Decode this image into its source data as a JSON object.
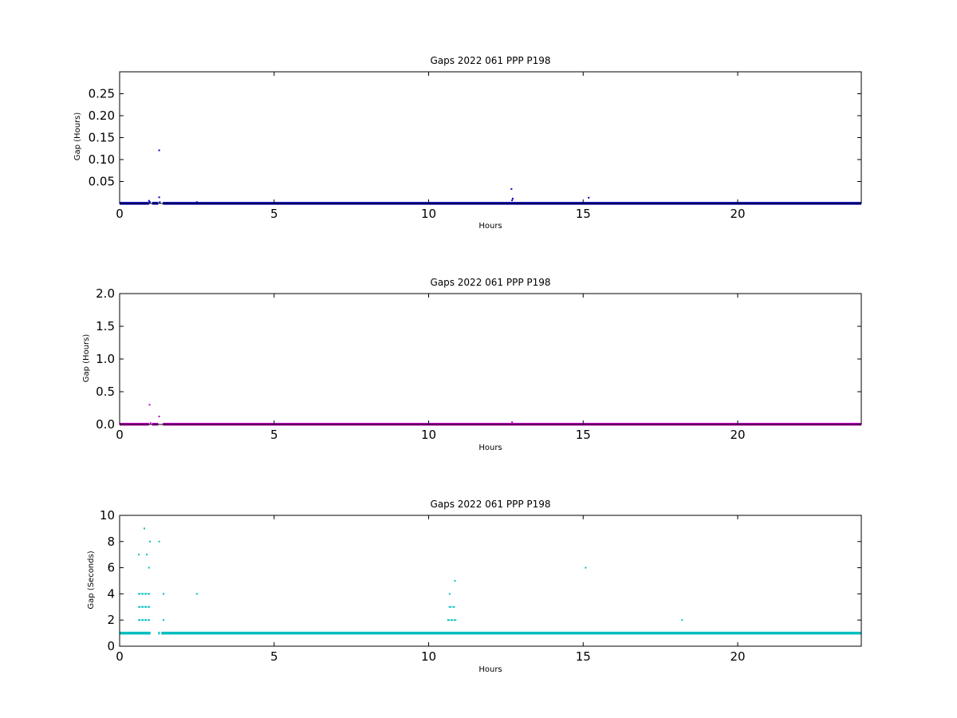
{
  "chart_data": [
    {
      "type": "scatter",
      "title": "Gaps 2022 061 PPP  P198",
      "xlabel": "Hours",
      "ylabel": "Gap (Hours)",
      "xlim": [
        0,
        24
      ],
      "ylim": [
        0,
        0.3
      ],
      "xticks": [
        0,
        5,
        10,
        15,
        20
      ],
      "xtick_labels": [
        "0",
        "5",
        "10",
        "15",
        "20"
      ],
      "yticks": [
        0.05,
        0.1,
        0.15,
        0.2,
        0.25
      ],
      "ytick_labels": [
        "0.05",
        "0.10",
        "0.15",
        "0.20",
        "0.25"
      ],
      "grid": false,
      "color": "#0000c0",
      "baseline": {
        "y": 0.0003,
        "x_ranges": [
          [
            0,
            0.95
          ],
          [
            1.05,
            1.25
          ],
          [
            1.4,
            24
          ]
        ]
      },
      "points": [
        {
          "x": 0.95,
          "y": 0.006
        },
        {
          "x": 0.98,
          "y": 0.003
        },
        {
          "x": 1.28,
          "y": 0.121
        },
        {
          "x": 1.28,
          "y": 0.014
        },
        {
          "x": 1.3,
          "y": 0.003
        },
        {
          "x": 2.5,
          "y": 0.003
        },
        {
          "x": 12.68,
          "y": 0.033
        },
        {
          "x": 12.72,
          "y": 0.011
        },
        {
          "x": 12.7,
          "y": 0.007
        },
        {
          "x": 15.18,
          "y": 0.013
        }
      ]
    },
    {
      "type": "scatter",
      "title": "Gaps 2022 061 PPP  P198",
      "xlabel": "Hours",
      "ylabel": "Gap (Hours)",
      "xlim": [
        0,
        24
      ],
      "ylim": [
        0,
        2.0
      ],
      "xticks": [
        0,
        5,
        10,
        15,
        20
      ],
      "xtick_labels": [
        "0",
        "5",
        "10",
        "15",
        "20"
      ],
      "yticks": [
        0,
        0.5,
        1.0,
        1.5,
        2.0
      ],
      "ytick_labels": [
        "0.0",
        "0.5",
        "1.0",
        "1.5",
        "2.0"
      ],
      "grid": false,
      "color": "#c000c0",
      "baseline": {
        "y": 0.003,
        "x_ranges": [
          [
            0,
            0.95
          ],
          [
            1.05,
            1.25
          ],
          [
            1.4,
            24
          ]
        ]
      },
      "points": [
        {
          "x": 0.97,
          "y": 0.3
        },
        {
          "x": 1.28,
          "y": 0.121
        },
        {
          "x": 1.0,
          "y": 0.02
        },
        {
          "x": 12.7,
          "y": 0.033
        }
      ]
    },
    {
      "type": "scatter",
      "title": "Gaps 2022 061 PPP  P198",
      "xlabel": "Hours",
      "ylabel": "Gap (Seconds)",
      "xlim": [
        0,
        24
      ],
      "ylim": [
        0,
        10
      ],
      "xticks": [
        0,
        5,
        10,
        15,
        20
      ],
      "xtick_labels": [
        "0",
        "5",
        "10",
        "15",
        "20"
      ],
      "yticks": [
        0,
        2,
        4,
        6,
        8,
        10
      ],
      "ytick_labels": [
        "0",
        "2",
        "4",
        "6",
        "8",
        "10"
      ],
      "grid": false,
      "color": "#00bfbf",
      "baseline": {
        "y": 1,
        "x_ranges": [
          [
            0,
            1.0
          ],
          [
            1.25,
            1.3
          ],
          [
            1.35,
            24
          ]
        ]
      },
      "segments": [
        {
          "y": 4,
          "x0": 0.6,
          "x1": 0.98
        },
        {
          "y": 3,
          "x0": 0.6,
          "x1": 0.98
        },
        {
          "y": 2,
          "x0": 0.6,
          "x1": 0.98
        },
        {
          "y": 2,
          "x0": 10.6,
          "x1": 10.92
        },
        {
          "y": 3,
          "x0": 10.65,
          "x1": 10.78
        }
      ],
      "points": [
        {
          "x": 0.8,
          "y": 9
        },
        {
          "x": 0.62,
          "y": 7
        },
        {
          "x": 0.88,
          "y": 7
        },
        {
          "x": 0.98,
          "y": 8
        },
        {
          "x": 0.95,
          "y": 6
        },
        {
          "x": 1.28,
          "y": 8
        },
        {
          "x": 1.42,
          "y": 4
        },
        {
          "x": 1.42,
          "y": 2
        },
        {
          "x": 2.5,
          "y": 4
        },
        {
          "x": 10.68,
          "y": 4
        },
        {
          "x": 10.85,
          "y": 5
        },
        {
          "x": 10.82,
          "y": 3
        },
        {
          "x": 15.08,
          "y": 6
        },
        {
          "x": 18.2,
          "y": 2
        }
      ]
    }
  ]
}
